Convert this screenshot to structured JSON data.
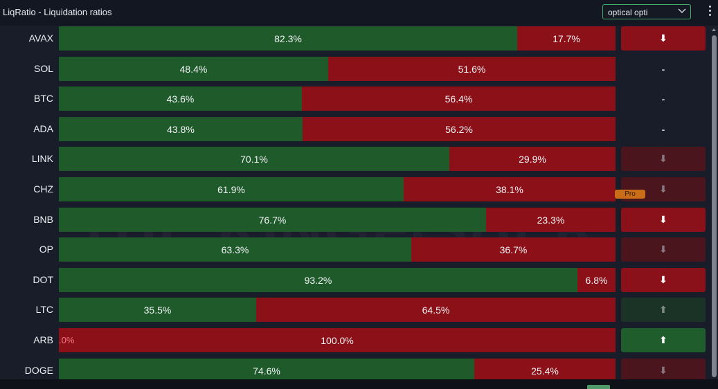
{
  "header": {
    "title": "LiqRatio - Liquidation ratios",
    "select_value": "optical opti"
  },
  "watermark": "THE KINGFISHER",
  "pro_badge": "Pro",
  "colors": {
    "long": "#1f5a2b",
    "short": "#8c1018",
    "accent": "#3fae6a"
  },
  "rows": [
    {
      "symbol": "AVAX",
      "long": 82.3,
      "short": 17.7,
      "long_label": "82.3%",
      "short_label": "17.7%",
      "signal": "down",
      "signal_icon": "arrow-down-icon",
      "signal_text": "⬇"
    },
    {
      "symbol": "SOL",
      "long": 48.4,
      "short": 51.6,
      "long_label": "48.4%",
      "short_label": "51.6%",
      "signal": "none",
      "signal_icon": "dash",
      "signal_text": "-"
    },
    {
      "symbol": "BTC",
      "long": 43.6,
      "short": 56.4,
      "long_label": "43.6%",
      "short_label": "56.4%",
      "signal": "none",
      "signal_icon": "dash",
      "signal_text": "-"
    },
    {
      "symbol": "ADA",
      "long": 43.8,
      "short": 56.2,
      "long_label": "43.8%",
      "short_label": "56.2%",
      "signal": "none",
      "signal_icon": "dash",
      "signal_text": "-"
    },
    {
      "symbol": "LINK",
      "long": 70.1,
      "short": 29.9,
      "long_label": "70.1%",
      "short_label": "29.9%",
      "signal": "down-dim",
      "signal_icon": "arrow-down-icon",
      "signal_text": "⬇"
    },
    {
      "symbol": "CHZ",
      "long": 61.9,
      "short": 38.1,
      "long_label": "61.9%",
      "short_label": "38.1%",
      "signal": "down-dim",
      "signal_icon": "arrow-down-icon",
      "signal_text": "⬇"
    },
    {
      "symbol": "BNB",
      "long": 76.7,
      "short": 23.3,
      "long_label": "76.7%",
      "short_label": "23.3%",
      "signal": "down",
      "signal_icon": "arrow-down-icon",
      "signal_text": "⬇"
    },
    {
      "symbol": "OP",
      "long": 63.3,
      "short": 36.7,
      "long_label": "63.3%",
      "short_label": "36.7%",
      "signal": "down-dim",
      "signal_icon": "arrow-down-icon",
      "signal_text": "⬇"
    },
    {
      "symbol": "DOT",
      "long": 93.2,
      "short": 6.8,
      "long_label": "93.2%",
      "short_label": "6.8%",
      "signal": "down",
      "signal_icon": "arrow-down-icon",
      "signal_text": "⬇"
    },
    {
      "symbol": "LTC",
      "long": 35.5,
      "short": 64.5,
      "long_label": "35.5%",
      "short_label": "64.5%",
      "signal": "up-dim",
      "signal_icon": "arrow-up-icon",
      "signal_text": "⬆"
    },
    {
      "symbol": "ARB",
      "long": 0.0,
      "short": 100.0,
      "long_label": ".0%",
      "short_label": "100.0%",
      "signal": "up",
      "signal_icon": "arrow-up-icon",
      "signal_text": "⬆"
    },
    {
      "symbol": "DOGE",
      "long": 74.6,
      "short": 25.4,
      "long_label": "74.6%",
      "short_label": "25.4%",
      "signal": "down-dim",
      "signal_icon": "arrow-down-icon",
      "signal_text": "⬇"
    }
  ]
}
